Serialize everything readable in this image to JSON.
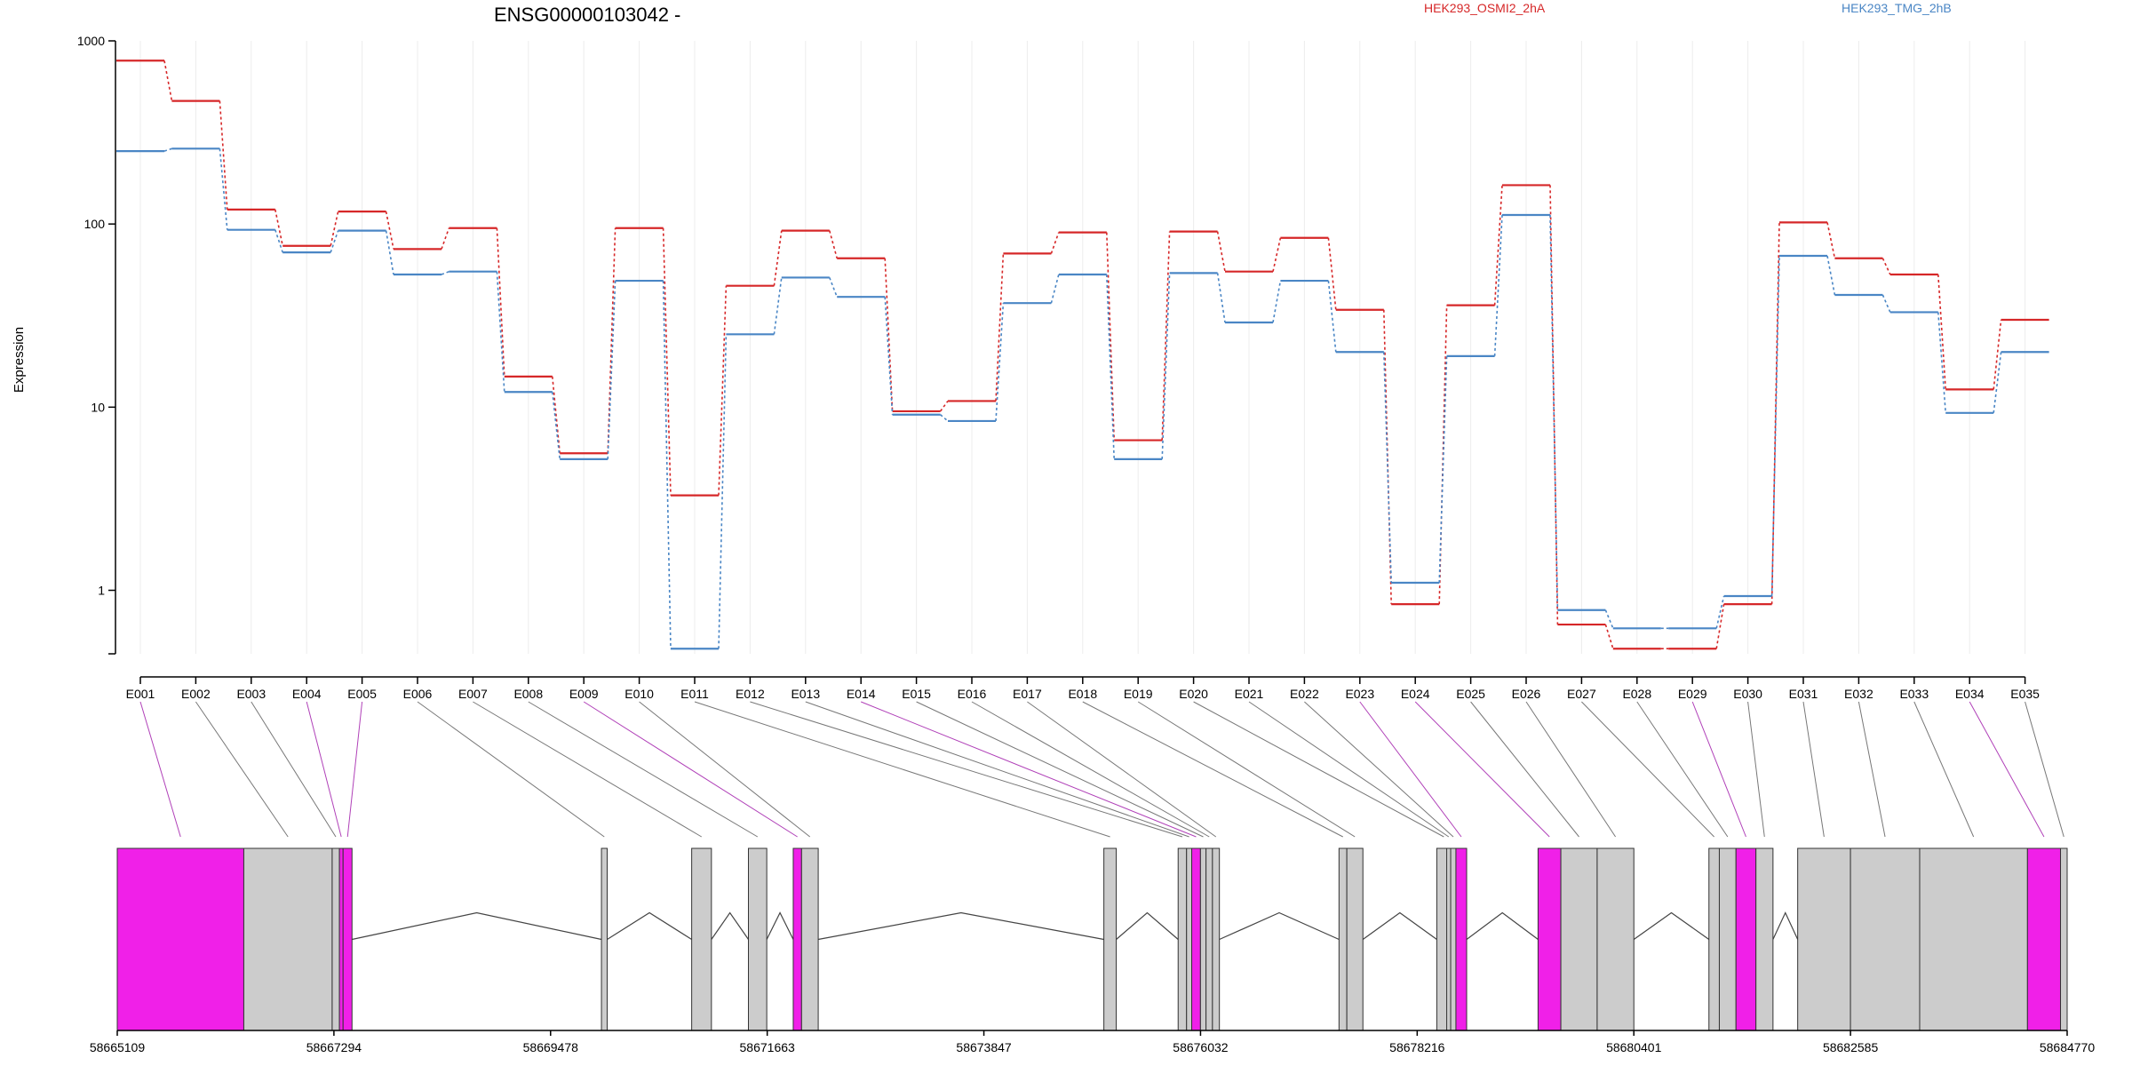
{
  "chart_data": {
    "type": "line",
    "title": "ENSG00000103042 -",
    "ylabel": "Expression",
    "y_scale": "log",
    "ylim": [
      0.45,
      1000
    ],
    "y_ticks": [
      1,
      10,
      100,
      1000
    ],
    "y_tick_labels": [
      "1",
      "10",
      "100",
      "1000"
    ],
    "grid": "vertical",
    "legend_position": "top",
    "categories": [
      "E001",
      "E002",
      "E003",
      "E004",
      "E005",
      "E006",
      "E007",
      "E008",
      "E009",
      "E010",
      "E011",
      "E012",
      "E013",
      "E014",
      "E015",
      "E016",
      "E017",
      "E018",
      "E019",
      "E020",
      "E021",
      "E022",
      "E023",
      "E024",
      "E025",
      "E026",
      "E027",
      "E028",
      "E029",
      "E030",
      "E031",
      "E032",
      "E033",
      "E034",
      "E035"
    ],
    "series": [
      {
        "name": "HEK293_OSMI2_2hA",
        "color": "#d62728",
        "values": [
          780,
          470,
          120,
          76,
          117,
          73,
          95,
          14.7,
          5.6,
          95,
          3.3,
          46,
          92,
          65,
          9.5,
          10.8,
          69,
          90,
          6.6,
          91,
          55,
          84,
          34,
          0.84,
          36,
          163,
          0.65,
          0.48,
          0.48,
          0.84,
          102,
          65,
          53,
          12.5,
          30
        ]
      },
      {
        "name": "HEK293_TMG_2hB",
        "color": "#4a86c5",
        "values": [
          250,
          258,
          93,
          70,
          92,
          53,
          55,
          12.1,
          5.2,
          49,
          0.48,
          25,
          51,
          40,
          9.1,
          8.4,
          37,
          53,
          5.2,
          54,
          29,
          49,
          20,
          1.1,
          19,
          112,
          0.78,
          0.62,
          0.62,
          0.93,
          67,
          41,
          33,
          9.3,
          20
        ]
      }
    ]
  },
  "gene_model": {
    "coordinates": [
      "58665109",
      "58667294",
      "58669478",
      "58671663",
      "58673847",
      "58676032",
      "58678216",
      "58680401",
      "58682585",
      "58684770"
    ],
    "genomic_start": 58665109,
    "genomic_end": 58684770,
    "exon_bin_starts": [
      58665109,
      58666385,
      58667276,
      58667349,
      58667386,
      58669991,
      58670901,
      58671473,
      58671925,
      58672009,
      58675057,
      58675806,
      58675891,
      58675943,
      58676031,
      58676087,
      58676152,
      58677428,
      58677507,
      58678414,
      58678514,
      58678554,
      58678607,
      58679435,
      58679665,
      58680031,
      58681158,
      58681263,
      58681431,
      58681632,
      58682053,
      58682585,
      58683283,
      58684370,
      58684703
    ],
    "exon_bin_ends": [
      58666385,
      58667276,
      58667349,
      58667386,
      58667476,
      58670049,
      58671100,
      58671658,
      58672009,
      58672177,
      58675182,
      58675891,
      58675943,
      58676031,
      58676087,
      58676152,
      58676222,
      58677507,
      58677669,
      58678556,
      58678554,
      58678607,
      58678715,
      58679665,
      58680031,
      58680401,
      58681263,
      58681431,
      58681632,
      58681804,
      58682585,
      58683283,
      58684370,
      58684703,
      58684770
    ],
    "highlight_color": "#f020e8",
    "highlighted_exons": [
      "E001",
      "E004",
      "E005",
      "E009",
      "E014",
      "E023",
      "E024",
      "E029",
      "E034"
    ],
    "base_color": "#cccccc"
  }
}
